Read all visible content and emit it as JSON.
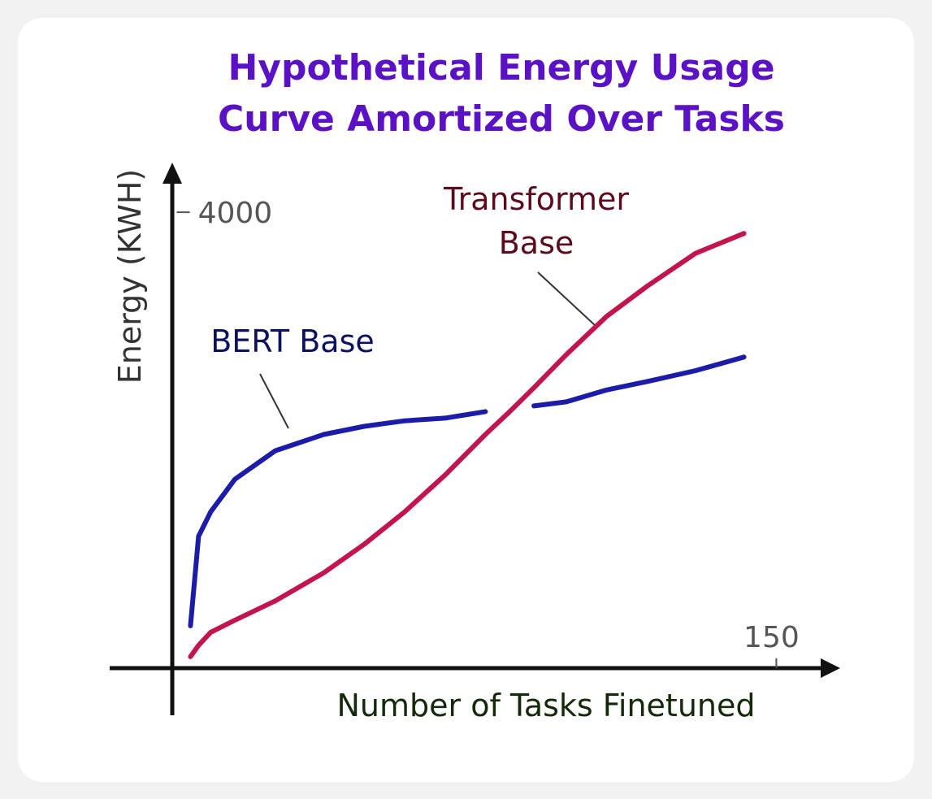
{
  "chart_data": {
    "type": "line",
    "title": "Hypothetical Energy Usage Curve Amortized Over Tasks",
    "x_label": "Number of Tasks Finetuned",
    "y_label": "Energy (KWH)",
    "x": [
      5,
      7,
      10,
      16,
      26,
      38,
      48,
      58,
      68,
      78,
      84,
      90,
      98,
      108,
      118,
      130,
      142
    ],
    "series": [
      {
        "name": "BERT Base",
        "color": "#1c1ca8",
        "values": [
          371,
          1157,
          1371,
          1657,
          1907,
          2050,
          2121,
          2170,
          2193,
          2250,
          null,
          2300,
          2336,
          2440,
          2514,
          2610,
          2729
        ]
      },
      {
        "name": "Transformer Base",
        "color": "#c2154b",
        "values": [
          100,
          200,
          314,
          420,
          590,
          836,
          1086,
          1371,
          1693,
          2050,
          2250,
          2460,
          2750,
          3086,
          3350,
          3640,
          3814
        ]
      }
    ],
    "xlim": [
      -15,
      165
    ],
    "xticks": [
      150
    ],
    "ylim": [
      -450,
      4400
    ],
    "yticks": [
      4000
    ]
  }
}
